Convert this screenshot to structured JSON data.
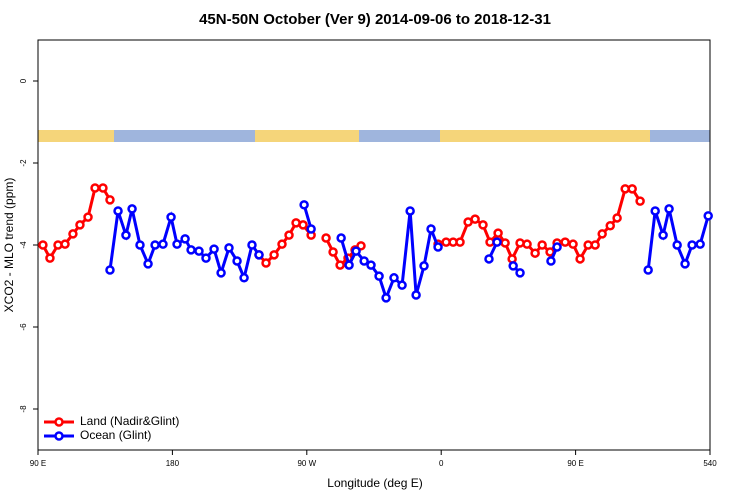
{
  "chart_data": {
    "type": "line",
    "title": "45N-50N October (Ver 9)   2014-09-06 to 2018-12-31",
    "x_label": "Longitude (deg E)",
    "y_label": "XCO2 - MLO trend (ppm)",
    "xlim": [
      90,
      540
    ],
    "ylim": [
      -9,
      1
    ],
    "xticks": [
      {
        "value": 90,
        "label": "90 E"
      },
      180,
      {
        "value": 270,
        "label": "90 W"
      },
      {
        "value": 360,
        "label": "0"
      },
      {
        "value": 450,
        "label": "90 E"
      },
      540
    ],
    "yticks": [
      0,
      -2,
      -4,
      -6,
      -8
    ],
    "legend": "bottom-left",
    "series": [
      {
        "name": "Land (Nadir&Glint)",
        "color": "#ff0000",
        "x": [
          93.3,
          98,
          103.4,
          108.1,
          113.4,
          118.1,
          123.5,
          128.2,
          133.5,
          138.2,
          null,
          238,
          242.7,
          248.1,
          253.4,
          258.1,
          262.8,
          267.5,
          272.9,
          null,
          282.9,
          287.6,
          292.3,
          297.6,
          302.3,
          306.3,
          null,
          357.9,
          363.3,
          368,
          372.6,
          378,
          382.7,
          388,
          392.7,
          398.1,
          402.8,
          407.5,
          412.8,
          417.5,
          422.9,
          427.6,
          432.9,
          437.6,
          443,
          448.3,
          453,
          458.4,
          463.1,
          467.8,
          473.2,
          477.8,
          483.2,
          487.9,
          493.2
        ],
        "values": [
          -4.0,
          -4.32,
          -4.0,
          -3.98,
          -3.73,
          -3.51,
          -3.32,
          -2.61,
          -2.61,
          -2.9,
          null,
          -4.24,
          -4.44,
          -4.24,
          -3.98,
          -3.76,
          -3.46,
          -3.51,
          -3.76,
          null,
          -3.83,
          -4.17,
          -4.49,
          -4.32,
          -4.12,
          -4.02,
          null,
          -3.98,
          -3.93,
          -3.93,
          -3.93,
          -3.44,
          -3.37,
          -3.51,
          -3.93,
          -3.71,
          -3.95,
          -4.34,
          -3.95,
          -3.98,
          -4.2,
          -4.0,
          -4.17,
          -3.95,
          -3.93,
          -3.98,
          -4.34,
          -4.0,
          -4.0,
          -3.73,
          -3.53,
          -3.34,
          -2.63,
          -2.63,
          -2.93
        ]
      },
      {
        "name": "Ocean (Glint)",
        "color": "#0000ff",
        "x": [
          138.2,
          143.6,
          148.9,
          153,
          158.3,
          163.7,
          168.4,
          173.7,
          179.1,
          183.1,
          188.5,
          192.5,
          197.8,
          202.5,
          207.9,
          212.6,
          217.9,
          223.3,
          228,
          233.3,
          238,
          null,
          268.2,
          272.9,
          null,
          293,
          298.3,
          303,
          308.4,
          313,
          318.4,
          323.1,
          328.4,
          333.8,
          339.2,
          343.2,
          348.5,
          353.2,
          357.9,
          null,
          392,
          397.4,
          null,
          408.2,
          412.8,
          null,
          433.5,
          437.6,
          null,
          498.6,
          503.3,
          508.6,
          512.6,
          518,
          523.3,
          528,
          533.4,
          538.8
        ],
        "values": [
          -4.61,
          -3.17,
          -3.76,
          -3.12,
          -4.0,
          -4.46,
          -4.0,
          -3.98,
          -3.32,
          -3.98,
          -3.85,
          -4.12,
          -4.15,
          -4.32,
          -4.1,
          -4.68,
          -4.07,
          -4.39,
          -4.8,
          -4.0,
          -4.24,
          null,
          -3.02,
          -3.61,
          null,
          -3.83,
          -4.49,
          -4.15,
          -4.39,
          -4.49,
          -4.76,
          -5.29,
          -4.8,
          -4.98,
          -3.17,
          -5.22,
          -4.51,
          -3.61,
          -4.05,
          null,
          -4.34,
          -3.93,
          null,
          -4.51,
          -4.68,
          null,
          -4.39,
          -4.05,
          null,
          -4.61,
          -3.17,
          -3.76,
          -3.12,
          -4.0,
          -4.46,
          -4.0,
          -3.98,
          -3.29
        ]
      }
    ]
  }
}
